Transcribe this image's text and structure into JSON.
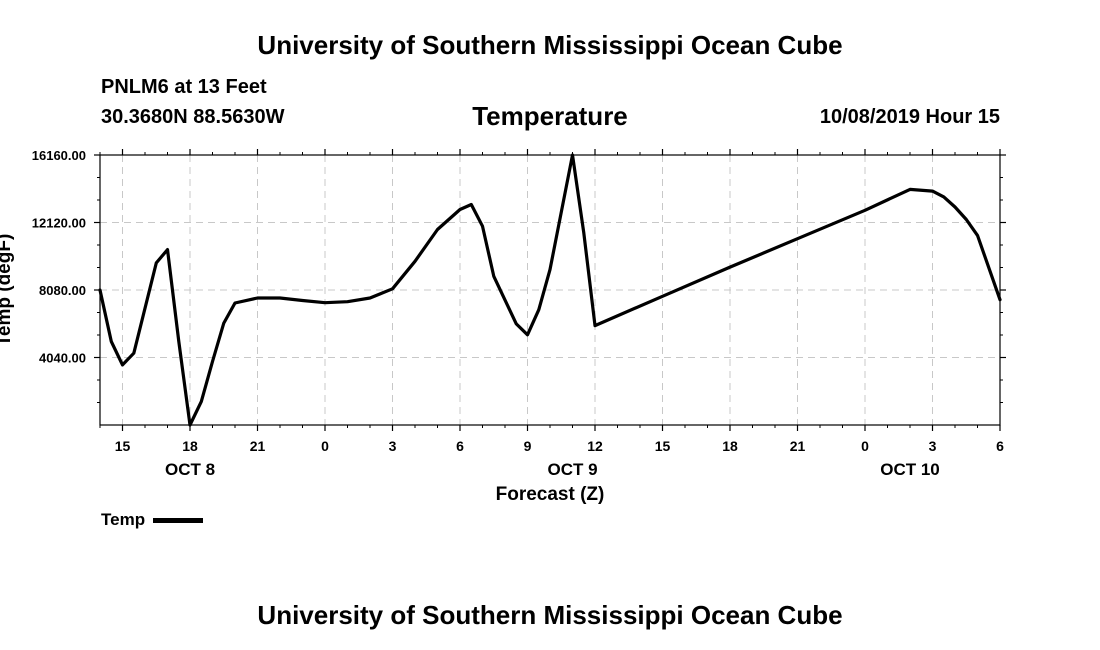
{
  "header": {
    "top_title": "University of Southern Mississippi Ocean Cube",
    "bottom_title": "University of Southern Mississippi Ocean Cube",
    "station": "PNLM6 at 13 Feet",
    "coords": "30.3680N 88.5630W",
    "datetime": "10/08/2019 Hour 15"
  },
  "colors": {
    "line": "#000000",
    "grid": "#c8c8c8",
    "background": "#ffffff"
  },
  "chart_data": {
    "type": "line",
    "title": "Temperature",
    "xlabel": "Forecast (Z)",
    "ylabel": "Temp (degF)",
    "ylim": [
      0,
      16160
    ],
    "xlim": [
      0,
      39
    ],
    "yticks": [
      {
        "value": 4040,
        "label": "4040.00"
      },
      {
        "value": 8080,
        "label": "8080.00"
      },
      {
        "value": 12120,
        "label": "12120.00"
      },
      {
        "value": 16160,
        "label": "16160.00"
      }
    ],
    "xticks": [
      {
        "hour": 1,
        "label": "15"
      },
      {
        "hour": 4,
        "label": "18"
      },
      {
        "hour": 7,
        "label": "21"
      },
      {
        "hour": 10,
        "label": "0"
      },
      {
        "hour": 13,
        "label": "3"
      },
      {
        "hour": 16,
        "label": "6"
      },
      {
        "hour": 19,
        "label": "9"
      },
      {
        "hour": 22,
        "label": "12"
      },
      {
        "hour": 25,
        "label": "15"
      },
      {
        "hour": 28,
        "label": "18"
      },
      {
        "hour": 31,
        "label": "21"
      },
      {
        "hour": 34,
        "label": "0"
      },
      {
        "hour": 37,
        "label": "3"
      },
      {
        "hour": 40,
        "label": "6"
      }
    ],
    "date_labels": [
      {
        "hour": 4,
        "label": "OCT 8"
      },
      {
        "hour": 21,
        "label": "OCT 9"
      },
      {
        "hour": 36,
        "label": "OCT 10"
      }
    ],
    "legend": [
      {
        "name": "Temp",
        "position": "bottom-left"
      }
    ],
    "series": [
      {
        "name": "Temp",
        "x": [
          0,
          0.5,
          1,
          1.5,
          2.5,
          3,
          3.5,
          4,
          4.5,
          5,
          5.5,
          6,
          7,
          8,
          9,
          10,
          11,
          12,
          13,
          14,
          15,
          16,
          16.5,
          17,
          17.5,
          18.5,
          19,
          19.5,
          20,
          21,
          21.5,
          22,
          25,
          28,
          31,
          34,
          36,
          37,
          37.5,
          38,
          38.5,
          39,
          40
        ],
        "values": [
          8080,
          5000,
          3600,
          4300,
          9700,
          10500,
          5000,
          0,
          1400,
          3800,
          6100,
          7300,
          7600,
          7600,
          7450,
          7320,
          7380,
          7600,
          8150,
          9800,
          11700,
          12900,
          13200,
          11900,
          8900,
          6050,
          5400,
          6900,
          9300,
          16160,
          11500,
          5950,
          7700,
          9450,
          11150,
          12850,
          14100,
          14000,
          13650,
          13050,
          12300,
          11350,
          7500
        ]
      }
    ]
  }
}
